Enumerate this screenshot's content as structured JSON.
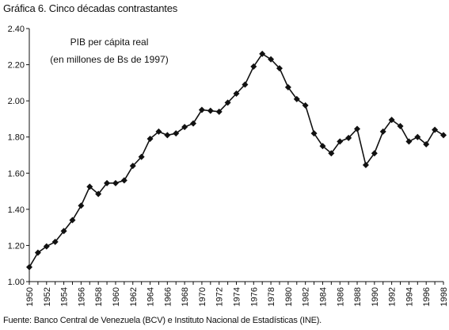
{
  "chart_data": {
    "type": "line",
    "title": "Gráfica 6. Cinco décadas contrastantes",
    "annotation_line1": "PIB per cápita real",
    "annotation_line2": "(en millones de Bs de 1997)",
    "source": "Fuente: Banco Central de Venezuela (BCV) e Instituto Nacional de Estadísticas (INE).",
    "xlabel": "",
    "ylabel": "",
    "ylim": [
      1.0,
      2.4
    ],
    "xlim": [
      1950,
      1998
    ],
    "grid": false,
    "legend": "none",
    "y_ticks": [
      "1.00",
      "1.20",
      "1.40",
      "1.60",
      "1.80",
      "2.00",
      "2.20",
      "2.40"
    ],
    "x_ticks": [
      "1950",
      "1952",
      "1954",
      "1956",
      "1958",
      "1960",
      "1962",
      "1964",
      "1966",
      "1968",
      "1970",
      "1972",
      "1974",
      "1976",
      "1978",
      "1980",
      "1982",
      "1984",
      "1986",
      "1988",
      "1990",
      "1992",
      "1994",
      "1996",
      "1998"
    ],
    "marker": "diamond",
    "color": "#111111",
    "x": [
      1950,
      1951,
      1952,
      1953,
      1954,
      1955,
      1956,
      1957,
      1958,
      1959,
      1960,
      1961,
      1962,
      1963,
      1964,
      1965,
      1966,
      1967,
      1968,
      1969,
      1970,
      1971,
      1972,
      1973,
      1974,
      1975,
      1976,
      1977,
      1978,
      1979,
      1980,
      1981,
      1982,
      1983,
      1984,
      1985,
      1986,
      1987,
      1988,
      1989,
      1990,
      1991,
      1992,
      1993,
      1994,
      1995,
      1996,
      1997,
      1998
    ],
    "values": [
      1.08,
      1.16,
      1.195,
      1.22,
      1.28,
      1.34,
      1.42,
      1.525,
      1.485,
      1.545,
      1.545,
      1.56,
      1.64,
      1.69,
      1.79,
      1.83,
      1.81,
      1.82,
      1.855,
      1.875,
      1.95,
      1.945,
      1.94,
      1.99,
      2.04,
      2.09,
      2.19,
      2.26,
      2.23,
      2.18,
      2.075,
      2.01,
      1.975,
      1.82,
      1.75,
      1.71,
      1.775,
      1.795,
      1.845,
      1.645,
      1.71,
      1.83,
      1.895,
      1.86,
      1.775,
      1.8,
      1.76,
      1.84,
      1.81
    ]
  }
}
